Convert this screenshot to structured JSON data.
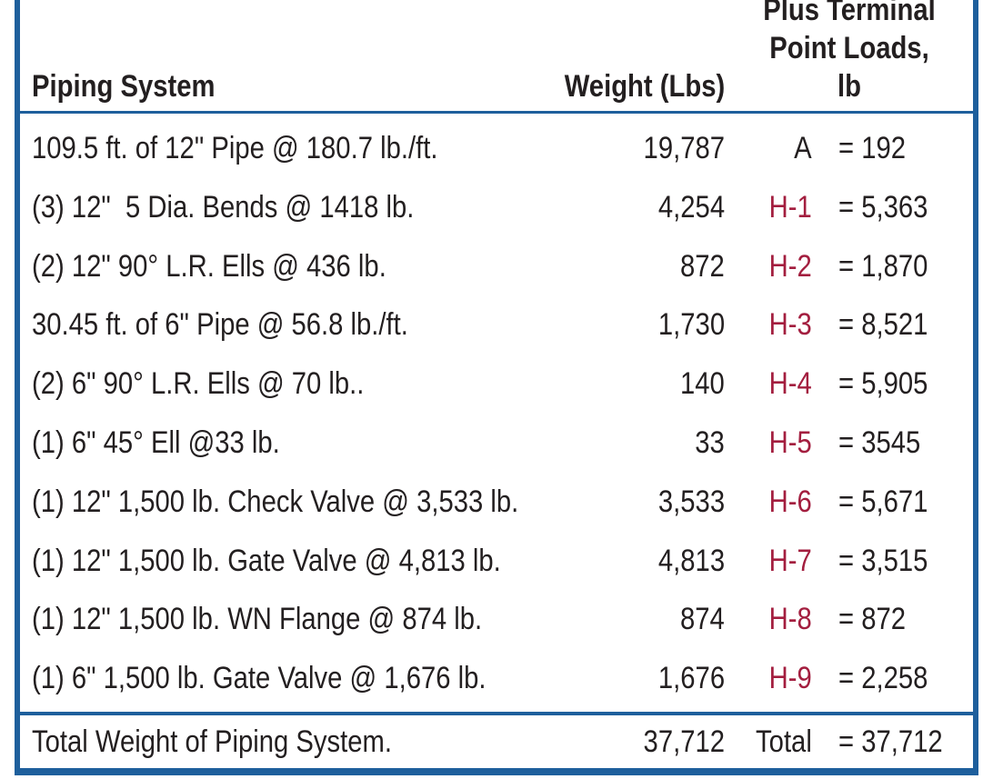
{
  "colors": {
    "frame_blue": "#1e5f9c",
    "hanger_label_red": "#a31e3f",
    "text_dark": "#231f20"
  },
  "header": {
    "col1": "Piping System",
    "col2": "Weight (Lbs)",
    "col3": "Support Forces\nPlus Terminal\nPoint Loads, lb"
  },
  "rows": [
    {
      "item": "109.5 ft. of 12\" Pipe @ 180.7 lb./ft.",
      "weight": "19,787",
      "load_label": "A",
      "load_value": "= 192"
    },
    {
      "item": "(3) 12\"  5 Dia. Bends @ 1418 lb.",
      "weight": "4,254",
      "load_label": "H-1",
      "load_value": "= 5,363"
    },
    {
      "item": "(2) 12\" 90° L.R. Ells @ 436 lb.",
      "weight": "872",
      "load_label": "H-2",
      "load_value": "= 1,870"
    },
    {
      "item": "30.45 ft. of 6\" Pipe @ 56.8 lb./ft.",
      "weight": "1,730",
      "load_label": "H-3",
      "load_value": "= 8,521"
    },
    {
      "item": "(2) 6\" 90° L.R. Ells @ 70 lb..",
      "weight": "140",
      "load_label": "H-4",
      "load_value": "= 5,905"
    },
    {
      "item": "(1) 6\" 45° Ell @33 lb.",
      "weight": "33",
      "load_label": "H-5",
      "load_value": "= 3545"
    },
    {
      "item": "(1) 12\" 1,500 lb. Check Valve @ 3,533 lb.",
      "weight": "3,533",
      "load_label": "H-6",
      "load_value": "= 5,671"
    },
    {
      "item": "(1) 12\" 1,500 lb. Gate Valve @ 4,813 lb.",
      "weight": "4,813",
      "load_label": "H-7",
      "load_value": "= 3,515"
    },
    {
      "item": "(1) 12\" 1,500 lb. WN Flange @ 874 lb.",
      "weight": "874",
      "load_label": "H-8",
      "load_value": "= 872"
    },
    {
      "item": "(1) 6\" 1,500 lb. Gate Valve @ 1,676 lb.",
      "weight": "1,676",
      "load_label": "H-9",
      "load_value": "= 2,258"
    }
  ],
  "total": {
    "item": "Total Weight of Piping System.",
    "weight": "37,712",
    "load_label": "Total",
    "load_value": "= 37,712"
  }
}
